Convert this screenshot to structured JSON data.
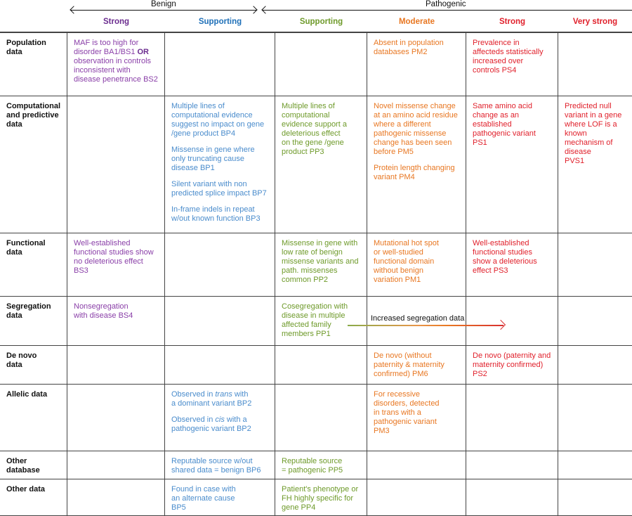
{
  "top": {
    "benign": "Benign",
    "pathogenic": "Pathogenic"
  },
  "colors": {
    "strong_benign": "#7a3596",
    "supporting_benign": "#2d78c0",
    "supporting_path": "#6e9a2a",
    "moderate": "#e87722",
    "strong_path": "#e01f2a",
    "very_strong": "#e01f2a"
  },
  "columns": [
    {
      "label": "Strong",
      "color": "#6b2c8f"
    },
    {
      "label": "Supporting",
      "color": "#1f70b8"
    },
    {
      "label": "Supporting",
      "color": "#6e9a2a"
    },
    {
      "label": "Moderate",
      "color": "#e87722"
    },
    {
      "label": "Strong",
      "color": "#e01f2a"
    },
    {
      "label": "Very strong",
      "color": "#e01f2a"
    }
  ],
  "cell_colors": [
    "#8a3fa8",
    "#4a8ccc",
    "#6e9a2a",
    "#e87722",
    "#e01f2a",
    "#e01f2a"
  ],
  "rows": [
    {
      "label": "Population\ndata",
      "cells": [
        [
          [
            {
              "t": "MAF is too high for\ndisorder BA1/BS1 "
            },
            {
              "t": "OR",
              "s": "b"
            },
            {
              "t": "\nobservation in controls\ninconsistent with\ndisease penetrance BS2"
            }
          ]
        ],
        [],
        [],
        [
          [
            {
              "t": "Absent in population\ndatabases PM2"
            }
          ]
        ],
        [
          [
            {
              "t": "Prevalence in\naffecteds statistically\nincreased over\ncontrols PS4"
            }
          ]
        ],
        []
      ]
    },
    {
      "label": "Computational\nand predictive\ndata",
      "cells": [
        [],
        [
          [
            {
              "t": "Multiple lines of\ncomputational evidence\nsuggest no impact on gene\n/gene product BP4"
            }
          ],
          [
            {
              "t": "Missense in gene where\nonly truncating cause\ndisease BP1"
            }
          ],
          [
            {
              "t": "Silent variant with non\npredicted splice impact BP7"
            }
          ],
          [
            {
              "t": "In-frame indels in repeat\nw/out known function BP3"
            }
          ]
        ],
        [
          [
            {
              "t": "Multiple lines of\ncomputational\nevidence support a\ndeleterious effect\non the gene /gene\nproduct PP3"
            }
          ]
        ],
        [
          [
            {
              "t": "Novel missense change\nat an amino acid residue\nwhere a different\npathogenic missense\nchange has been seen\nbefore PM5"
            }
          ],
          [
            {
              "t": "Protein length changing\nvariant PM4"
            }
          ]
        ],
        [
          [
            {
              "t": "Same amino acid\nchange as an\nestablished\npathogenic variant\nPS1"
            }
          ]
        ],
        [
          [
            {
              "t": "Predicted null\nvariant in a gene\nwhere LOF is a\nknown\nmechanism of\ndisease\nPVS1"
            }
          ]
        ]
      ]
    },
    {
      "label": "Functional\ndata",
      "cells": [
        [
          [
            {
              "t": "Well-established\nfunctional studies show\nno deleterious effect\nBS3"
            }
          ]
        ],
        [],
        [
          [
            {
              "t": "Missense in gene with\nlow rate of benign\nmissense variants and\npath. missenses\ncommon PP2"
            }
          ]
        ],
        [
          [
            {
              "t": "Mutational hot spot\nor well-studied\nfunctional domain\nwithout benign\nvariation PM1"
            }
          ]
        ],
        [
          [
            {
              "t": "Well-established\nfunctional studies\nshow a deleterious\neffect PS3"
            }
          ]
        ],
        []
      ]
    },
    {
      "label": "Segregation\ndata",
      "cells": [
        [
          [
            {
              "t": "Nonsegregation\nwith disease BS4"
            }
          ]
        ],
        [],
        [
          [
            {
              "t": "Cosegregation with\ndisease in multiple\naffected family\nmembers PP1"
            }
          ]
        ],
        [],
        [],
        []
      ]
    },
    {
      "label": "De novo\ndata",
      "cells": [
        [],
        [],
        [],
        [
          [
            {
              "t": "De novo (without\npaternity & maternity\nconfirmed) PM6"
            }
          ]
        ],
        [
          [
            {
              "t": "De novo (paternity and\nmaternity confirmed)\nPS2"
            }
          ]
        ],
        []
      ]
    },
    {
      "label": "Allelic data",
      "cells": [
        [],
        [
          [
            {
              "t": "Observed in "
            },
            {
              "t": "trans",
              "s": "i"
            },
            {
              "t": " with\na dominant variant BP2"
            }
          ],
          [
            {
              "t": "Observed in "
            },
            {
              "t": "cis",
              "s": "i"
            },
            {
              "t": " with a\npathogenic variant BP2"
            }
          ]
        ],
        [],
        [
          [
            {
              "t": "For recessive\ndisorders, detected\nin trans with a\npathogenic variant\nPM3"
            }
          ]
        ],
        [],
        []
      ]
    },
    {
      "label": "Other\ndatabase",
      "cells": [
        [],
        [
          [
            {
              "t": "Reputable source w/out\nshared data = benign BP6"
            }
          ]
        ],
        [
          [
            {
              "t": "Reputable source\n= pathogenic PP5"
            }
          ]
        ],
        [],
        [],
        []
      ]
    },
    {
      "label": "Other data",
      "cells": [
        [],
        [
          [
            {
              "t": "Found in case with\nan alternate cause\nBP5"
            }
          ]
        ],
        [
          [
            {
              "t": "Patient's phenotype or\nFH highly specific for\ngene PP4"
            }
          ]
        ],
        [],
        [],
        []
      ]
    }
  ],
  "segregation_arrow": {
    "label": "Increased segregation data"
  }
}
